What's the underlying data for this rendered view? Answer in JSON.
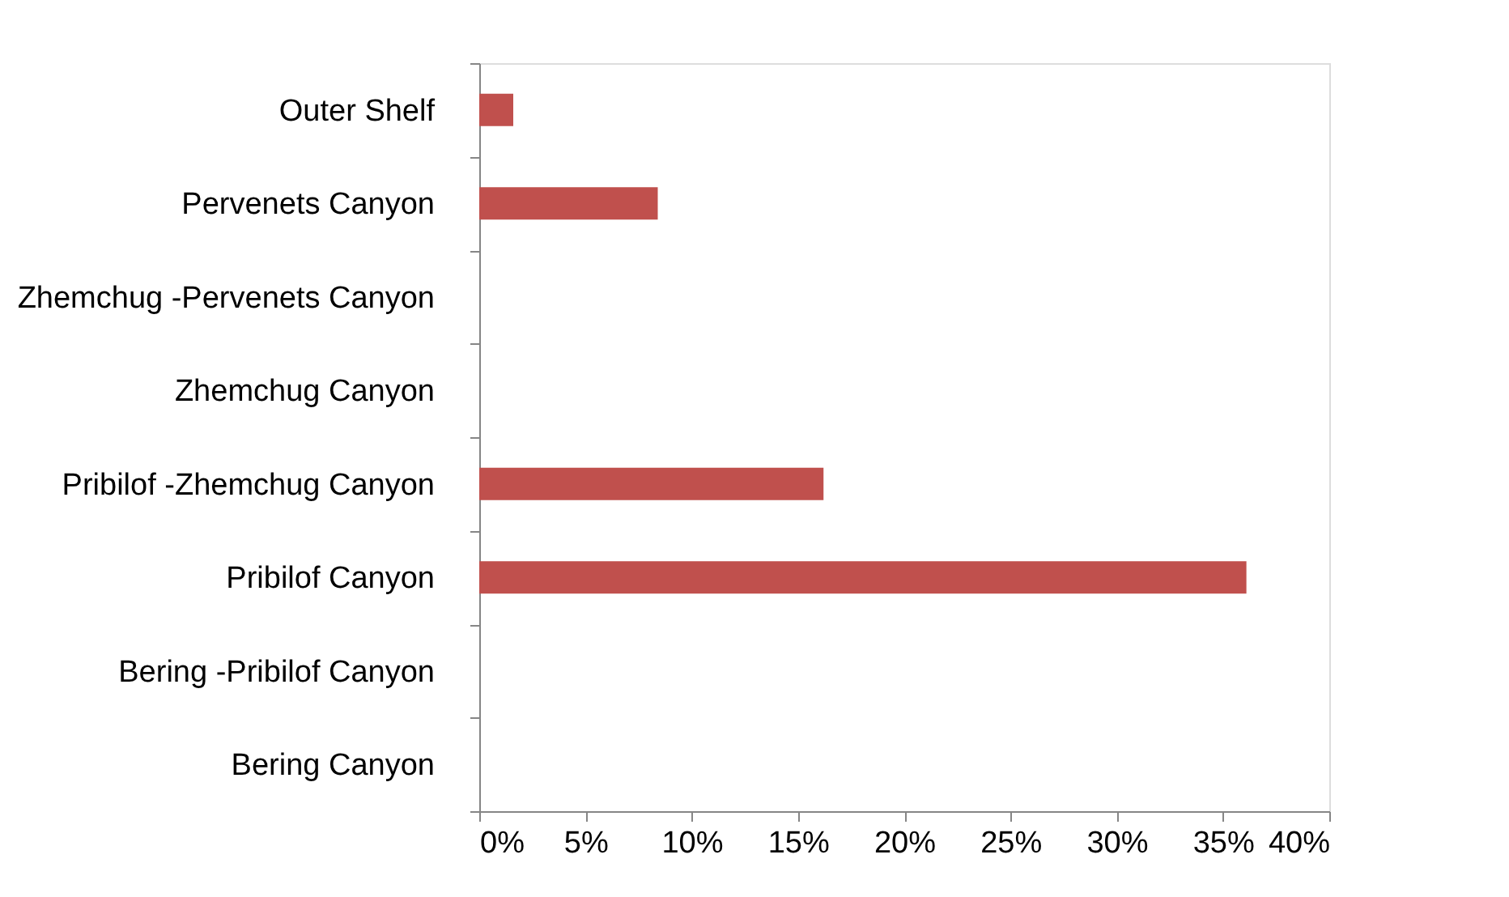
{
  "chart_data": {
    "type": "bar",
    "orientation": "horizontal",
    "categories": [
      "Outer Shelf",
      "Pervenets Canyon",
      "Zhemchug -Pervenets Canyon",
      "Zhemchug Canyon",
      "Pribilof -Zhemchug Canyon",
      "Pribilof Canyon",
      "Bering -Pribilof Canyon",
      "Bering Canyon"
    ],
    "values": [
      1.6,
      8.4,
      0,
      0,
      16.2,
      36.1,
      0,
      0
    ],
    "color": "#c0504d",
    "xlim": [
      0,
      40
    ],
    "xticks": [
      {
        "value": 0,
        "label": "0%"
      },
      {
        "value": 5,
        "label": "5%"
      },
      {
        "value": 10,
        "label": "10%"
      },
      {
        "value": 15,
        "label": "15%"
      },
      {
        "value": 20,
        "label": "20%"
      },
      {
        "value": 25,
        "label": "25%"
      },
      {
        "value": 30,
        "label": "30%"
      },
      {
        "value": 35,
        "label": "35%"
      },
      {
        "value": 40,
        "label": "40%"
      }
    ],
    "grid": false
  }
}
